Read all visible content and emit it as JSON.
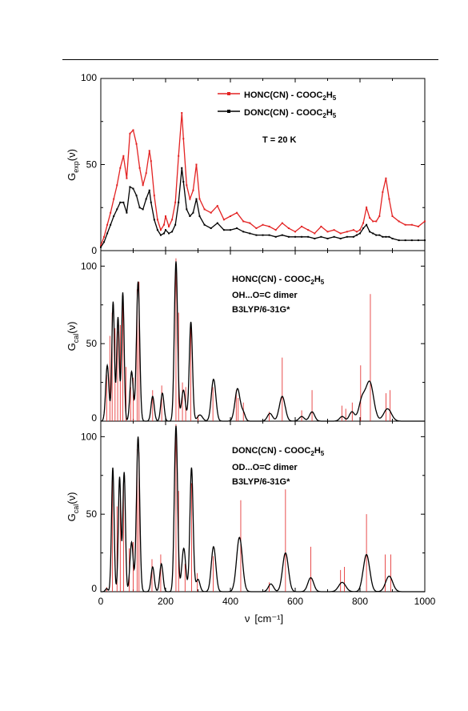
{
  "colors": {
    "red": "#e32222",
    "black": "#000000",
    "frame": "#000000"
  },
  "x_axis": {
    "label_prefix": "ν",
    "label_unit": "[cm⁻¹]",
    "range": [
      0,
      1000
    ],
    "ticks": [
      "0",
      "200",
      "400",
      "600",
      "800",
      "1000"
    ]
  },
  "chart_data": [
    {
      "type": "line",
      "panel": "top",
      "ylabel_main": "G",
      "ylabel_sub": "exp",
      "ylabel_paren": "(ν)",
      "ylim": [
        0,
        100
      ],
      "yticks": [
        "0",
        "50",
        "100"
      ],
      "legend": [
        {
          "color": "red",
          "pre": "HONC(CN) - COOC",
          "sub1": "2",
          "mid": "H",
          "sub2": "5"
        },
        {
          "color": "black",
          "pre": "DONC(CN) - COOC",
          "sub1": "2",
          "mid": "H",
          "sub2": "5"
        }
      ],
      "annotation": "T = 20 K",
      "series": [
        {
          "name": "HONC(CN) - COOC2H5",
          "color": "red",
          "x": [
            0,
            10,
            20,
            30,
            40,
            50,
            60,
            70,
            80,
            90,
            100,
            110,
            120,
            130,
            140,
            150,
            155,
            165,
            175,
            185,
            195,
            200,
            210,
            220,
            230,
            240,
            250,
            255,
            265,
            275,
            285,
            295,
            305,
            320,
            340,
            360,
            380,
            400,
            420,
            440,
            460,
            480,
            500,
            520,
            540,
            560,
            580,
            600,
            620,
            640,
            660,
            680,
            700,
            720,
            740,
            760,
            780,
            790,
            800,
            810,
            820,
            830,
            840,
            850,
            860,
            870,
            880,
            890,
            900,
            920,
            940,
            960,
            980,
            1000
          ],
          "y": [
            3,
            8,
            15,
            22,
            30,
            38,
            48,
            55,
            42,
            68,
            70,
            62,
            48,
            38,
            45,
            58,
            52,
            32,
            18,
            12,
            15,
            20,
            14,
            18,
            28,
            55,
            80,
            65,
            38,
            30,
            35,
            50,
            30,
            24,
            22,
            26,
            18,
            20,
            22,
            17,
            16,
            13,
            15,
            14,
            12,
            16,
            13,
            11,
            14,
            12,
            10,
            14,
            11,
            12,
            10,
            11,
            12,
            11,
            12,
            16,
            25,
            19,
            17,
            17,
            20,
            34,
            42,
            30,
            20,
            17,
            15,
            15,
            14,
            17
          ]
        },
        {
          "name": "DONC(CN) - COOC2H5",
          "color": "black",
          "x": [
            0,
            10,
            20,
            30,
            40,
            50,
            60,
            70,
            80,
            90,
            100,
            110,
            120,
            130,
            140,
            150,
            155,
            165,
            175,
            185,
            195,
            200,
            210,
            220,
            230,
            240,
            250,
            255,
            265,
            275,
            285,
            295,
            305,
            320,
            340,
            360,
            380,
            400,
            420,
            440,
            460,
            480,
            500,
            520,
            540,
            560,
            580,
            600,
            620,
            640,
            660,
            680,
            700,
            720,
            740,
            760,
            780,
            790,
            800,
            810,
            820,
            830,
            840,
            850,
            860,
            870,
            880,
            890,
            900,
            920,
            940,
            960,
            980,
            1000
          ],
          "y": [
            2,
            5,
            10,
            15,
            20,
            24,
            28,
            28,
            22,
            37,
            36,
            32,
            25,
            24,
            30,
            35,
            28,
            18,
            12,
            9,
            10,
            12,
            10,
            11,
            15,
            28,
            48,
            40,
            24,
            20,
            22,
            30,
            20,
            15,
            13,
            16,
            12,
            12,
            13,
            11,
            10,
            9,
            9,
            9,
            8,
            9,
            8,
            8,
            8,
            8,
            7,
            8,
            7,
            8,
            7,
            8,
            8,
            9,
            10,
            13,
            15,
            11,
            10,
            9,
            9,
            8,
            8,
            8,
            7,
            6,
            6,
            6,
            6,
            6
          ]
        }
      ]
    },
    {
      "type": "line",
      "panel": "middle",
      "ylabel_main": "G",
      "ylabel_sub": "cal",
      "ylabel_paren": "(ν)",
      "ylim": [
        0,
        110
      ],
      "yticks": [
        "0",
        "50",
        "100"
      ],
      "annotation": {
        "line1_pre": "HONC(CN) - COOC",
        "line1_sub1": "2",
        "line1_mid": "H",
        "line1_sub2": "5",
        "line2": "OH...O=C dimer",
        "line3": "B3LYP/6-31G*"
      },
      "sticks_color": "red",
      "sticks": [
        [
          18,
          30
        ],
        [
          28,
          55
        ],
        [
          35,
          70
        ],
        [
          44,
          60
        ],
        [
          52,
          58
        ],
        [
          60,
          62
        ],
        [
          68,
          78
        ],
        [
          78,
          35
        ],
        [
          92,
          22
        ],
        [
          100,
          28
        ],
        [
          112,
          85
        ],
        [
          118,
          90
        ],
        [
          160,
          20
        ],
        [
          188,
          23
        ],
        [
          232,
          105
        ],
        [
          240,
          70
        ],
        [
          252,
          25
        ],
        [
          262,
          22
        ],
        [
          278,
          62
        ],
        [
          300,
          4
        ],
        [
          346,
          22
        ],
        [
          418,
          20
        ],
        [
          424,
          15
        ],
        [
          440,
          12
        ],
        [
          520,
          6
        ],
        [
          560,
          41
        ],
        [
          620,
          7
        ],
        [
          652,
          20
        ],
        [
          744,
          10
        ],
        [
          756,
          8
        ],
        [
          776,
          12
        ],
        [
          802,
          36
        ],
        [
          832,
          82
        ],
        [
          880,
          18
        ],
        [
          893,
          20
        ]
      ],
      "curve_color": "black",
      "peaks": [
        [
          20,
          36,
          5
        ],
        [
          38,
          77,
          4
        ],
        [
          53,
          67,
          4
        ],
        [
          68,
          83,
          4
        ],
        [
          95,
          32,
          5
        ],
        [
          115,
          90,
          5
        ],
        [
          160,
          16,
          5
        ],
        [
          190,
          18,
          5
        ],
        [
          232,
          103,
          5
        ],
        [
          255,
          20,
          6
        ],
        [
          278,
          64,
          5
        ],
        [
          306,
          4,
          8
        ],
        [
          348,
          27,
          7
        ],
        [
          422,
          21,
          8
        ],
        [
          440,
          5,
          6
        ],
        [
          522,
          5,
          8
        ],
        [
          560,
          16,
          9
        ],
        [
          620,
          3,
          8
        ],
        [
          652,
          6,
          8
        ],
        [
          745,
          3,
          8
        ],
        [
          775,
          6,
          8
        ],
        [
          806,
          13,
          10
        ],
        [
          830,
          25,
          12
        ],
        [
          885,
          8,
          12
        ]
      ]
    },
    {
      "type": "line",
      "panel": "bottom",
      "ylabel_main": "G",
      "ylabel_sub": "cal",
      "ylabel_paren": "(ν)",
      "ylim": [
        0,
        110
      ],
      "yticks": [
        "0",
        "50",
        "100"
      ],
      "annotation": {
        "line1": "DONC(CN) - COOC",
        "line1_sub1": "2",
        "line1_mid": "H",
        "line1_sub2": "5",
        "line2": "OD...O=C dimer",
        "line3": "B3LYP/6-31G*"
      },
      "sticks_color": "red",
      "sticks": [
        [
          18,
          3
        ],
        [
          36,
          72
        ],
        [
          50,
          55
        ],
        [
          60,
          60
        ],
        [
          70,
          70
        ],
        [
          88,
          28
        ],
        [
          100,
          32
        ],
        [
          112,
          92
        ],
        [
          118,
          90
        ],
        [
          158,
          21
        ],
        [
          185,
          24
        ],
        [
          232,
          108
        ],
        [
          240,
          65
        ],
        [
          260,
          18
        ],
        [
          280,
          70
        ],
        [
          298,
          12
        ],
        [
          347,
          23
        ],
        [
          432,
          59
        ],
        [
          520,
          6
        ],
        [
          570,
          66
        ],
        [
          648,
          29
        ],
        [
          740,
          14
        ],
        [
          752,
          16
        ],
        [
          820,
          50
        ],
        [
          878,
          24
        ],
        [
          895,
          24
        ]
      ],
      "curve_color": "black",
      "peaks": [
        [
          18,
          2,
          4
        ],
        [
          37,
          80,
          4
        ],
        [
          58,
          74,
          4
        ],
        [
          72,
          77,
          4
        ],
        [
          95,
          32,
          5
        ],
        [
          115,
          100,
          5
        ],
        [
          160,
          16,
          5
        ],
        [
          187,
          18,
          5
        ],
        [
          232,
          107,
          5
        ],
        [
          256,
          28,
          6
        ],
        [
          280,
          80,
          5
        ],
        [
          300,
          8,
          6
        ],
        [
          348,
          29,
          7
        ],
        [
          428,
          35,
          9
        ],
        [
          525,
          5,
          8
        ],
        [
          570,
          25,
          9
        ],
        [
          648,
          9,
          9
        ],
        [
          745,
          6,
          11
        ],
        [
          820,
          24,
          10
        ],
        [
          890,
          10,
          11
        ]
      ]
    }
  ]
}
